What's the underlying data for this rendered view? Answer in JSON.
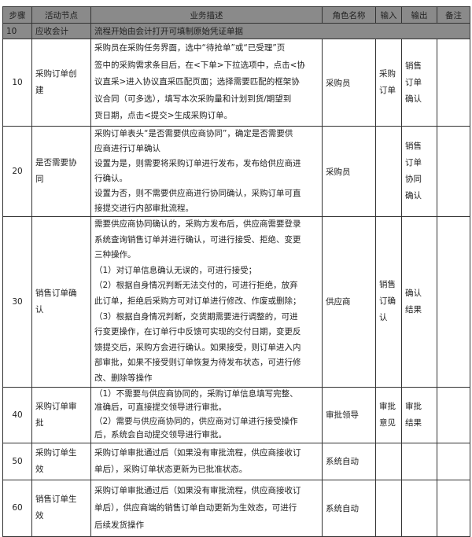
{
  "header": [
    "步骤",
    "活动节点",
    "业务描述",
    "角色名称",
    "输入",
    "输出",
    "备注"
  ],
  "section": {
    "step": "10",
    "node": "应收会计",
    "desc": "流程开始由会计打开可填制原始凭证单据"
  },
  "rows": [
    {
      "cls": "r10",
      "step": "10",
      "node": [
        "采购订单创",
        "建"
      ],
      "desc": [
        "采购员在采购任务界面，选中“待抢单”或“已受理”页",
        "签中的采购需求条目后，在<下单>下拉选项中，点击<协",
        "议直采>进入协议直采匹配页面；选择需要匹配的框架协",
        "议合同（可多选），填写本次采购量和计划到货/期望到",
        "货日期，点击<提交>生成采购订单。"
      ],
      "role": "采购员",
      "input": [
        "采购",
        "订单"
      ],
      "output": [
        "销售",
        "订单",
        "确认"
      ],
      "note": ""
    },
    {
      "cls": "r20",
      "step": "20",
      "node": [
        "是否需要协",
        "同"
      ],
      "desc": [
        "采购订单表头“是否需要供应商协同”，确定是否需要供",
        "应商进行订单确认",
        "设置为是，则需要将采购订单进行发布，发布给供应商进",
        "行确认。",
        "设置为否，则不需要供应商进行协同确认，采购订单可直",
        "接提交进行内部审批流程。"
      ],
      "role": "采购员",
      "input": [],
      "output": [
        "销售",
        "订单",
        "协同",
        "确认"
      ],
      "note": ""
    },
    {
      "cls": "r30",
      "step": "30",
      "node": [
        "销售订单确",
        "认"
      ],
      "desc": [
        "需要供应商协同确认的，采购方发布后，供应商需要登录",
        "系统查询销售订单并进行确认，可进行接受、拒绝、变更",
        "三种操作。",
        "（1）对订单信息确认无误的，可进行接受；",
        "（2）根据自身情况判断无法交付的，可进行拒绝，放弃",
        "此订单，拒绝后采购方可对订单进行修改、作废或删除；",
        "（3）根据自身情况判断，交货期需要进行调整的，可进",
        "行变更操作，在订单行中反馈可实现的交付日期，变更反",
        "馈提交后，采购方会进行确认。如果接受，则订单进入内",
        "部审批，如果不接受则订单恢复为待发布状态，可进行修",
        "改、删除等操作"
      ],
      "role": "供应商",
      "input": [
        "销售",
        "订确",
        "认"
      ],
      "output": [
        "确认",
        "结果"
      ],
      "note": ""
    },
    {
      "cls": "r40",
      "step": "40",
      "node": [
        "采购订单审",
        "批"
      ],
      "desc": [
        "（1）不需要与供应商协同的，采购订单信息填写完整、",
        "准确后，可直接提交领导进行审批。",
        "（2）需要与供应商协同的，供应商对订单进行接受操作",
        "后，系统会自动提交领导进行审批。"
      ],
      "role": "审批领导",
      "input": [
        "审批",
        "意见"
      ],
      "output": [
        "审批",
        "结果"
      ],
      "note": ""
    },
    {
      "cls": "r50",
      "step": "50",
      "node": [
        "采购订单生",
        "效"
      ],
      "desc": [
        "采购订单审批通过后（如果没有审批流程，供应商接收订",
        "单后），采购订单状态更新为已批准状态。"
      ],
      "role": "系统自动",
      "input": [],
      "output": [],
      "note": ""
    },
    {
      "cls": "r60",
      "step": "60",
      "node": [
        "销售订单生",
        "效"
      ],
      "desc": [
        "采购订单审批通过后（如果没有审批流程，供应商接收订",
        "单后），供应商端的销售订单自动更新为生效态，可进行",
        "后续发货操作"
      ],
      "role": "系统自动",
      "input": [],
      "output": [],
      "note": ""
    }
  ]
}
